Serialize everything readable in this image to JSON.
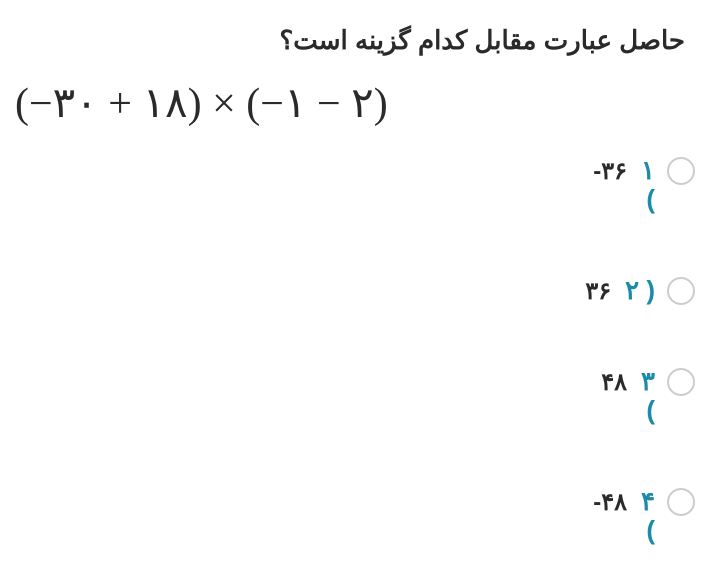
{
  "question": "حاصل عبارت مقابل کدام گزینه است؟",
  "expression": "(−۳۰ + ۱۸) × (−۱ − ۲)",
  "options": [
    {
      "num": "۱",
      "value": "-۳۶",
      "paren": "("
    },
    {
      "num": "۲ )",
      "value": "۳۶",
      "paren": ""
    },
    {
      "num": "۳",
      "value": "۴۸",
      "paren": "("
    },
    {
      "num": "۴",
      "value": "-۴۸",
      "paren": "("
    }
  ],
  "colors": {
    "text": "#2a2a2a",
    "accent": "#1a8ba8",
    "radio_border": "#cccccc",
    "background": "#ffffff"
  },
  "fonts": {
    "question_size": 26,
    "expression_size": 42,
    "option_size": 26
  }
}
